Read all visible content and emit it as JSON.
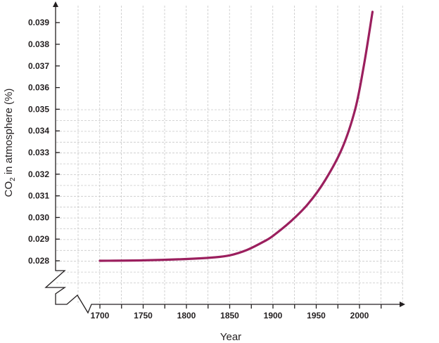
{
  "chart_data": {
    "type": "line",
    "title": "",
    "xlabel": "Year",
    "ylabel": {
      "prefix": "CO",
      "subscript": "2",
      "suffix": " in atmosphere (%)"
    },
    "x_ticks": [
      1700,
      1750,
      1800,
      1850,
      1900,
      1950,
      2000
    ],
    "y_ticks": [
      "0.028",
      "0.029",
      "0.030",
      "0.031",
      "0.032",
      "0.033",
      "0.034",
      "0.035",
      "0.036",
      "0.037",
      "0.038",
      "0.039"
    ],
    "xlim": [
      1700,
      2050
    ],
    "ylim": [
      0.028,
      0.039
    ],
    "axis_breaks": {
      "x": true,
      "y": true
    },
    "grid": true,
    "line_color": "#9b1f5e",
    "series": [
      {
        "x": [
          1700,
          1750,
          1800,
          1830,
          1850,
          1870,
          1890,
          1900,
          1920,
          1940,
          1960,
          1980,
          1995,
          2005,
          2015
        ],
        "y": [
          0.028,
          0.02802,
          0.02808,
          0.02815,
          0.02825,
          0.0285,
          0.0289,
          0.02915,
          0.0298,
          0.0306,
          0.0317,
          0.0332,
          0.035,
          0.037,
          0.0395
        ]
      }
    ]
  }
}
